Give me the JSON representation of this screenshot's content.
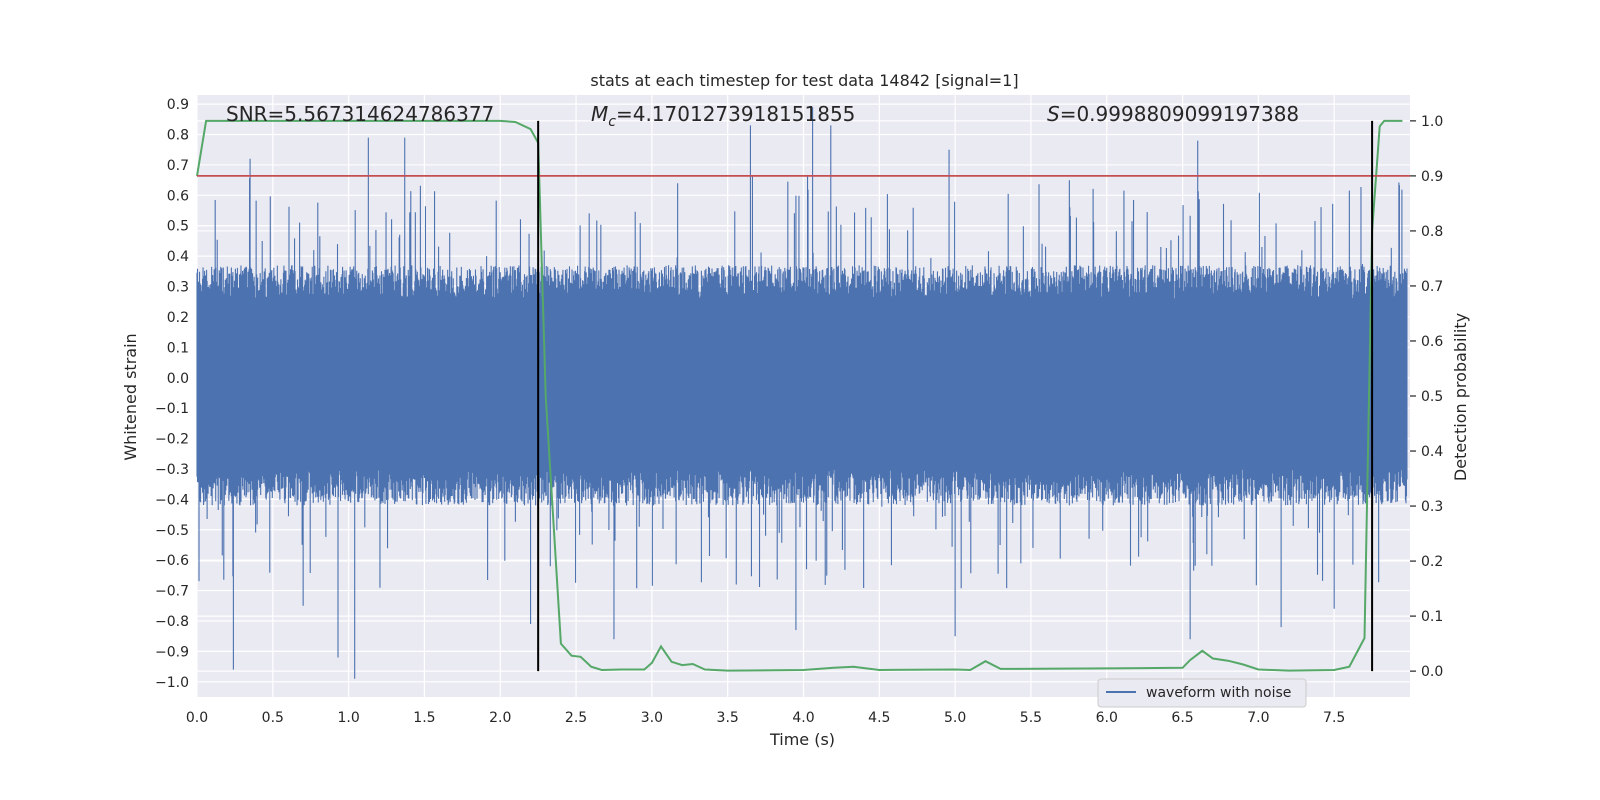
{
  "chart_data": {
    "type": "line",
    "title": "stats at each timestep for test data 14842 [signal=1]",
    "xlabel": "Time (s)",
    "ylabel": "Whitened strain",
    "y2label": "Detection probability",
    "xlim": [
      0.0,
      8.0
    ],
    "ylim": [
      -1.05,
      0.93
    ],
    "y2lim": [
      -0.047,
      1.047
    ],
    "x_ticks": [
      0.0,
      0.5,
      1.0,
      1.5,
      2.0,
      2.5,
      3.0,
      3.5,
      4.0,
      4.5,
      5.0,
      5.5,
      6.0,
      6.5,
      7.0,
      7.5
    ],
    "y_ticks": [
      -1.0,
      -0.9,
      -0.8,
      -0.7,
      -0.6,
      -0.5,
      -0.4,
      -0.3,
      -0.2,
      -0.1,
      0.0,
      0.1,
      0.2,
      0.3,
      0.4,
      0.5,
      0.6,
      0.7,
      0.8,
      0.9
    ],
    "y2_ticks": [
      0.0,
      0.1,
      0.2,
      0.3,
      0.4,
      0.5,
      0.6,
      0.7,
      0.8,
      0.9,
      1.0
    ],
    "grid": true,
    "legend_position": "lower-right",
    "annotations": {
      "snr": "SNR=5.567314624786377",
      "mc_symbol": "M",
      "mc_sub": "c",
      "mc_value": "=4.1701273918151855",
      "s_symbol": "S",
      "s_value": "=0.9998809099197388"
    },
    "series": [
      {
        "name": "waveform with noise",
        "axis": "left",
        "color": "#4c72b0",
        "description_level": "noise",
        "typical_extent": [
          -0.42,
          0.37
        ],
        "extremes": [
          {
            "x": 0.24,
            "y": -0.96
          },
          {
            "x": 0.35,
            "y": 0.72
          },
          {
            "x": 0.7,
            "y": -0.75
          },
          {
            "x": 0.93,
            "y": -0.92
          },
          {
            "x": 1.04,
            "y": -0.99
          },
          {
            "x": 1.13,
            "y": 0.79
          },
          {
            "x": 1.37,
            "y": 0.79
          },
          {
            "x": 2.2,
            "y": -0.81
          },
          {
            "x": 2.75,
            "y": -0.86
          },
          {
            "x": 3.65,
            "y": 0.83
          },
          {
            "x": 3.95,
            "y": -0.83
          },
          {
            "x": 4.06,
            "y": 0.89
          },
          {
            "x": 4.18,
            "y": 0.83
          },
          {
            "x": 4.96,
            "y": 0.75
          },
          {
            "x": 5.0,
            "y": -0.85
          },
          {
            "x": 6.55,
            "y": -0.86
          },
          {
            "x": 6.6,
            "y": 0.78
          },
          {
            "x": 7.15,
            "y": -0.82
          },
          {
            "x": 7.5,
            "y": -0.76
          }
        ]
      },
      {
        "name": "",
        "axis": "right",
        "color": "#55a868",
        "x": [
          0.0,
          0.06,
          0.5,
          1.0,
          1.5,
          2.0,
          2.1,
          2.2,
          2.25,
          2.3,
          2.4,
          2.47,
          2.53,
          2.6,
          2.67,
          2.8,
          2.95,
          3.0,
          3.06,
          3.13,
          3.2,
          3.27,
          3.35,
          3.5,
          4.0,
          4.2,
          4.33,
          4.5,
          5.0,
          5.1,
          5.2,
          5.3,
          6.0,
          6.5,
          6.55,
          6.63,
          6.7,
          6.8,
          6.9,
          7.0,
          7.2,
          7.5,
          7.6,
          7.7,
          7.75,
          7.8,
          7.83,
          7.95
        ],
        "y": [
          0.9,
          1.0,
          1.0,
          1.0,
          1.0,
          1.0,
          0.998,
          0.985,
          0.96,
          0.5,
          0.05,
          0.028,
          0.026,
          0.008,
          0.002,
          0.003,
          0.003,
          0.015,
          0.045,
          0.017,
          0.011,
          0.013,
          0.003,
          0.001,
          0.002,
          0.006,
          0.008,
          0.002,
          0.003,
          0.002,
          0.018,
          0.004,
          0.005,
          0.006,
          0.02,
          0.037,
          0.023,
          0.019,
          0.012,
          0.003,
          0.001,
          0.002,
          0.008,
          0.06,
          0.8,
          0.99,
          1.0,
          1.0
        ]
      },
      {
        "name": "",
        "axis": "right",
        "color": "#c44e52",
        "type": "hline",
        "y": 0.9
      },
      {
        "name": "",
        "axis": "right",
        "color": "#000000",
        "type": "vlines",
        "x": [
          2.25,
          7.75
        ],
        "y_range": [
          0.0,
          1.0
        ]
      }
    ]
  },
  "legend": {
    "entries": [
      {
        "label": "waveform with noise",
        "color": "#4c72b0"
      }
    ]
  },
  "style": {
    "plot_background": "#eaeaf2",
    "grid_color": "#ffffff",
    "text_color": "#262626"
  }
}
